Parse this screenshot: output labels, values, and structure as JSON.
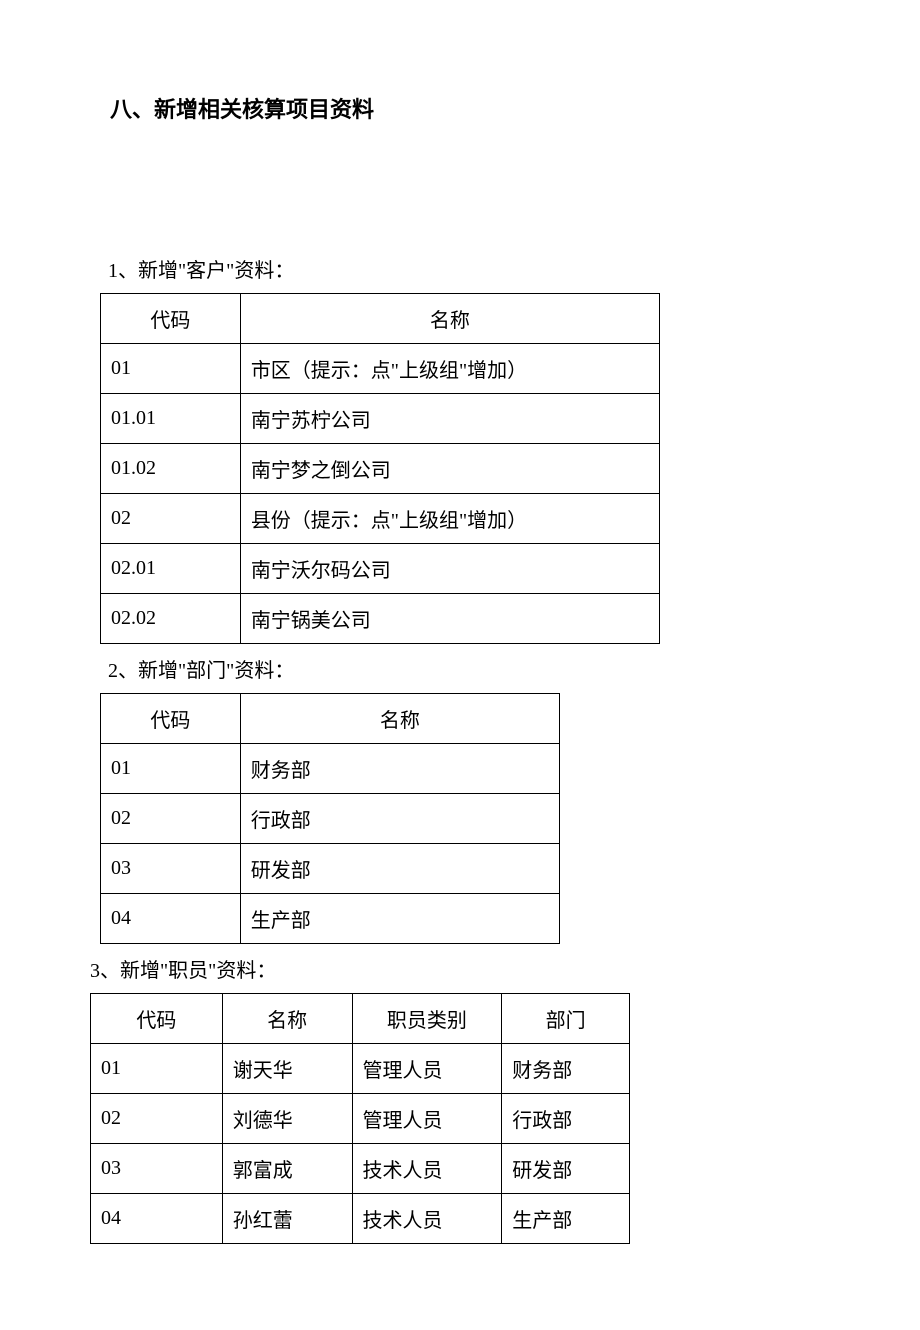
{
  "heading": "八、新增相关核算项目资料",
  "section1": {
    "label": "1、新增\"客户\"资料：",
    "columns": [
      "代码",
      "名称"
    ],
    "rows": [
      [
        "01",
        "市区（提示：点\"上级组\"增加）"
      ],
      [
        "01.01",
        "南宁苏柠公司"
      ],
      [
        "01.02",
        "南宁梦之倒公司"
      ],
      [
        "02",
        "县份（提示：点\"上级组\"增加）"
      ],
      [
        "02.01",
        "南宁沃尔码公司"
      ],
      [
        "02.02",
        "南宁锅美公司"
      ]
    ]
  },
  "section2": {
    "label": "2、新增\"部门\"资料：",
    "columns": [
      "代码",
      "名称"
    ],
    "rows": [
      [
        "01",
        "财务部"
      ],
      [
        "02",
        "行政部"
      ],
      [
        "03",
        "研发部"
      ],
      [
        "04",
        "生产部"
      ]
    ]
  },
  "section3": {
    "label": "3、新增\"职员\"资料：",
    "columns": [
      "代码",
      "名称",
      "职员类别",
      "部门"
    ],
    "rows": [
      [
        "01",
        "谢天华",
        "管理人员",
        "财务部"
      ],
      [
        "02",
        "刘德华",
        "管理人员",
        "行政部"
      ],
      [
        "03",
        "郭富成",
        "技术人员",
        "研发部"
      ],
      [
        "04",
        "孙红蕾",
        "技术人员",
        "生产部"
      ]
    ]
  },
  "style": {
    "font_family": "SimSun",
    "base_fontsize": 20,
    "heading_fontsize": 22,
    "border_color": "#000000",
    "text_color": "#000000",
    "background": "#ffffff"
  }
}
